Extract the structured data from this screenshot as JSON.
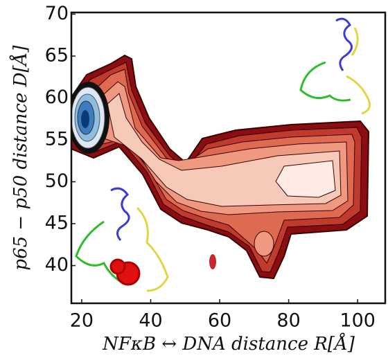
{
  "chart_data": {
    "type": "contour",
    "x_label": "NFκB ↔ DNA distance R[Å]",
    "y_label": "p65 − p50 distance D[Å]",
    "xlim": [
      17,
      108
    ],
    "ylim": [
      35.5,
      70.2
    ],
    "xticks": [
      20,
      40,
      60,
      80,
      100
    ],
    "yticks": [
      40,
      45,
      50,
      55,
      60,
      65,
      70
    ]
  }
}
